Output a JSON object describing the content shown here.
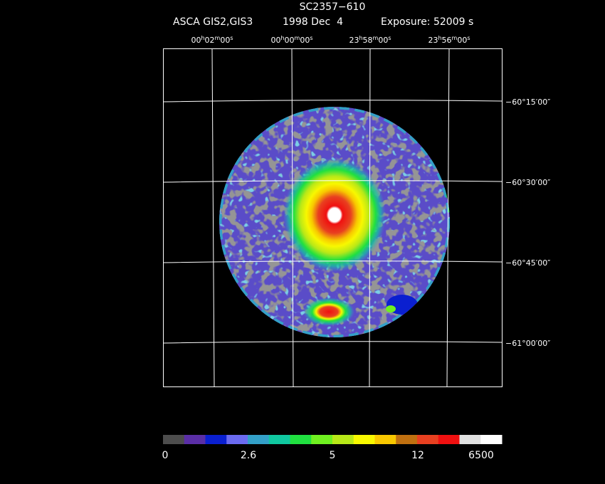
{
  "header": {
    "title": "SC2357−610",
    "instrument": "ASCA GIS2,GIS3",
    "date": "1998 Dec  4",
    "exposure": "Exposure: 52009 s"
  },
  "ra_labels": [
    "00h02m00s",
    "00h00m00s",
    "23h58m00s",
    "23h56m00s"
  ],
  "dec_labels": [
    "−60°15′00″",
    "−60°30′00″",
    "−60°45′00″",
    "−61°00′00″"
  ],
  "colorbar": {
    "colors": [
      "#4d4d4d",
      "#5a2ea6",
      "#0a1fd0",
      "#6b6bf0",
      "#33a0c8",
      "#10c8a0",
      "#20e040",
      "#70f020",
      "#b8e818",
      "#f8f800",
      "#f8c800",
      "#c07010",
      "#e84020",
      "#f01010",
      "#e0e0e0",
      "#ffffff"
    ],
    "labels": [
      "0",
      "2.6",
      "5",
      "12",
      "6500"
    ]
  }
}
